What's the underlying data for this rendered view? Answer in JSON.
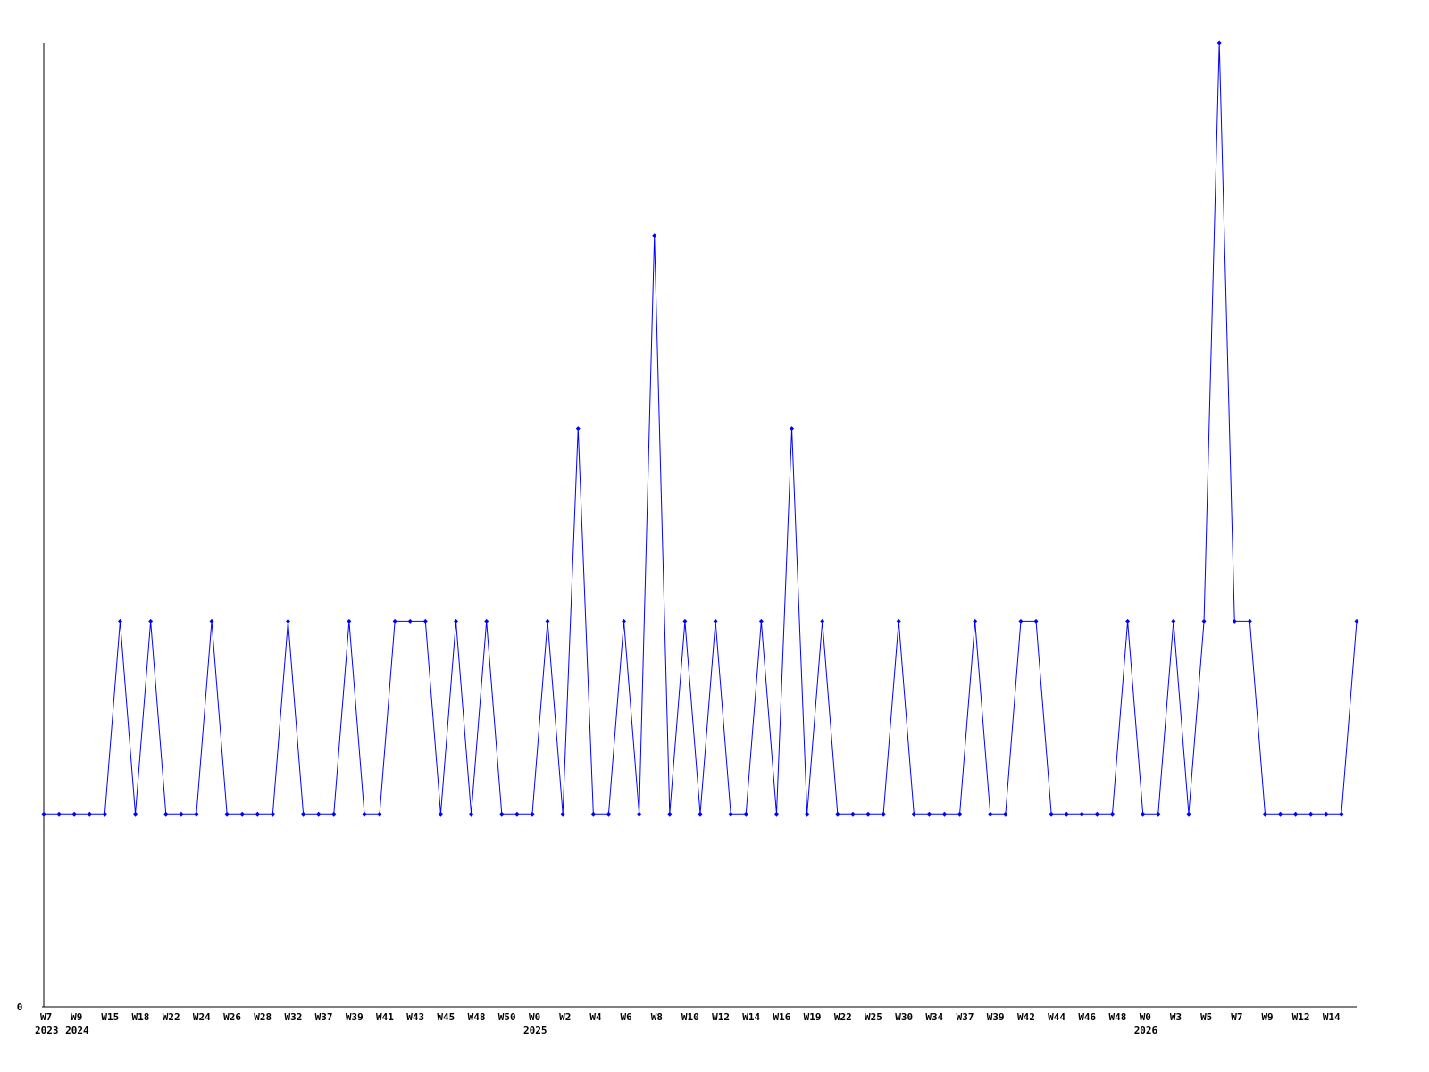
{
  "chart_data": {
    "type": "line",
    "categories": [
      "W7",
      null,
      "W9",
      null,
      "W15",
      null,
      "W18",
      null,
      "W22",
      null,
      "W24",
      null,
      "W26",
      null,
      "W28",
      null,
      "W32",
      null,
      "W37",
      null,
      "W39",
      null,
      "W41",
      null,
      "W43",
      null,
      "W45",
      null,
      "W48",
      null,
      "W50",
      null,
      "W0",
      null,
      "W2",
      null,
      "W4",
      null,
      "W6",
      null,
      "W8",
      null,
      "W10",
      null,
      "W12",
      null,
      "W14",
      null,
      "W16",
      null,
      "W19",
      null,
      "W22",
      null,
      "W25",
      null,
      "W30",
      null,
      "W34",
      null,
      "W37",
      null,
      "W39",
      null,
      "W42",
      null,
      "W44",
      null,
      "W46",
      null,
      "W48",
      null,
      "W0",
      null,
      "W3",
      null,
      "W5",
      null,
      "W7",
      null,
      "W9",
      null,
      "W12",
      null,
      "W14",
      null,
      null
    ],
    "x_sublabels": [
      "2023",
      null,
      "2024",
      null,
      null,
      null,
      null,
      null,
      null,
      null,
      null,
      null,
      null,
      null,
      null,
      null,
      null,
      null,
      null,
      null,
      null,
      null,
      null,
      null,
      null,
      null,
      null,
      null,
      null,
      null,
      null,
      null,
      "2025",
      null,
      null,
      null,
      null,
      null,
      null,
      null,
      null,
      null,
      null,
      null,
      null,
      null,
      null,
      null,
      null,
      null,
      null,
      null,
      null,
      null,
      null,
      null,
      null,
      null,
      null,
      null,
      null,
      null,
      null,
      null,
      null,
      null,
      null,
      null,
      null,
      null,
      null,
      null,
      "2026",
      null,
      null,
      null,
      null,
      null,
      null,
      null,
      null,
      null,
      null,
      null,
      null,
      null,
      null
    ],
    "series": [
      {
        "color": "#0000ff",
        "values": [
          1,
          1,
          1,
          1,
          1,
          2,
          1,
          2,
          1,
          1,
          1,
          2,
          1,
          1,
          1,
          1,
          2,
          1,
          1,
          1,
          2,
          1,
          1,
          2,
          2,
          2,
          1,
          2,
          1,
          2,
          1,
          1,
          1,
          2,
          1,
          3,
          1,
          1,
          2,
          1,
          4,
          1,
          2,
          1,
          2,
          1,
          1,
          2,
          1,
          3,
          1,
          2,
          1,
          1,
          1,
          1,
          2,
          1,
          1,
          1,
          1,
          2,
          1,
          1,
          2,
          2,
          1,
          1,
          1,
          1,
          1,
          2,
          1,
          1,
          2,
          1,
          2,
          5,
          2,
          2,
          1,
          1,
          1,
          1,
          1,
          1,
          2
        ]
      }
    ],
    "ylim": [
      0,
      5
    ],
    "yticks": [
      0
    ]
  }
}
